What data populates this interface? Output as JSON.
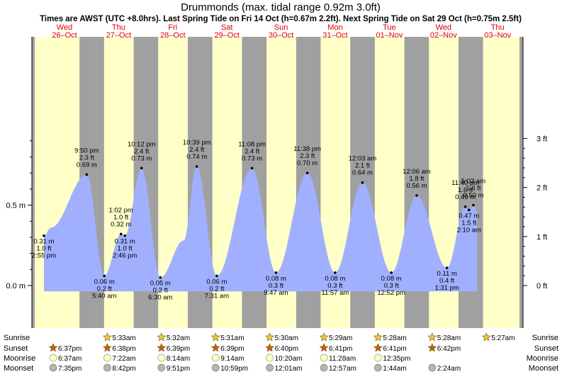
{
  "chart_data": {
    "type": "area",
    "title": "Drummonds (max. tidal range 0.92m 3.0ft)",
    "subtitle": "Times are AWST (UTC +8.0hrs). Last Spring Tide on Fri 14 Oct (h=0.67m 2.2ft). Next Spring Tide on Sat 29 Oct (h=0.75m 2.5ft)",
    "ylim_m": [
      -0.16,
      1.0
    ],
    "xlim_day": [
      -0.7,
      8.0
    ],
    "y_ticks_m": [
      {
        "v": 0.0,
        "label": "0.0 m"
      },
      {
        "v": 0.5,
        "label": "0.5 m"
      }
    ],
    "y_ticks_ft": [
      {
        "v": 0,
        "label": "0 ft"
      },
      {
        "v": 1,
        "label": "1 ft"
      },
      {
        "v": 2,
        "label": "2 ft"
      },
      {
        "v": 3,
        "label": "3 ft"
      }
    ],
    "days": [
      {
        "dow": "Wed",
        "date": "26–Oct",
        "pos": 0.0
      },
      {
        "dow": "Thu",
        "date": "27–Oct",
        "pos": 1.0
      },
      {
        "dow": "Fri",
        "date": "28–Oct",
        "pos": 2.0
      },
      {
        "dow": "Sat",
        "date": "29–Oct",
        "pos": 3.0
      },
      {
        "dow": "Sun",
        "date": "30–Oct",
        "pos": 4.0
      },
      {
        "dow": "Mon",
        "date": "31–Oct",
        "pos": 5.0
      },
      {
        "dow": "Tue",
        "date": "01–Nov",
        "pos": 6.0
      },
      {
        "dow": "Wed",
        "date": "02–Nov",
        "pos": 7.0
      },
      {
        "dow": "Thu",
        "date": "03–Nov",
        "pos": 8.0
      }
    ],
    "night_intervals": [
      [
        0.278,
        0.731
      ],
      [
        1.278,
        1.731
      ],
      [
        2.278,
        2.731
      ],
      [
        3.278,
        3.731
      ],
      [
        4.278,
        4.731
      ],
      [
        5.278,
        5.731
      ],
      [
        6.278,
        6.731
      ],
      [
        7.278,
        7.73
      ]
    ],
    "tides": [
      {
        "t": -0.25,
        "h": 0.36,
        "label": false
      },
      {
        "t": -0.38,
        "h": 0.31,
        "m": "0.31 m",
        "ft": "1.0 ft",
        "time": "2:55 pm",
        "kind": "low",
        "label": true
      },
      {
        "t": 0.41,
        "h": 0.69,
        "m": "0.69 m",
        "ft": "2.3 ft",
        "time": "9:50 pm",
        "kind": "high",
        "label": true
      },
      {
        "t": 0.736,
        "h": 0.06,
        "m": "0.06 m",
        "ft": "0.2 ft",
        "time": "5:40 am",
        "kind": "low",
        "label": true
      },
      {
        "t": 1.043,
        "h": 0.32,
        "m": "0.32 m",
        "ft": "1.0 ft",
        "time": "1:02 pm",
        "kind": "high",
        "label": true
      },
      {
        "t": 1.115,
        "h": 0.31,
        "m": "0.31 m",
        "ft": "1.0 ft",
        "time": "2:46 pm",
        "kind": "low",
        "label": true
      },
      {
        "t": 1.424,
        "h": 0.73,
        "m": "0.73 m",
        "ft": "2.4 ft",
        "time": "10:12 pm",
        "kind": "high",
        "label": true
      },
      {
        "t": 1.771,
        "h": 0.05,
        "m": "0.05 m",
        "ft": "0.2 ft",
        "time": "6:30 am",
        "kind": "low",
        "label": true
      },
      {
        "t": 2.2,
        "h": 0.28,
        "label": false
      },
      {
        "t": 2.444,
        "h": 0.74,
        "m": "0.74 m",
        "ft": "2.4 ft",
        "time": "10:39 pm",
        "kind": "high",
        "label": true
      },
      {
        "t": 2.813,
        "h": 0.06,
        "m": "0.06 m",
        "ft": "0.2 ft",
        "time": "7:31 am",
        "kind": "low",
        "label": true
      },
      {
        "t": 3.464,
        "h": 0.73,
        "m": "0.73 m",
        "ft": "2.4 ft",
        "time": "11:08 pm",
        "kind": "high",
        "label": true
      },
      {
        "t": 3.906,
        "h": 0.08,
        "m": "0.08 m",
        "ft": "0.3 ft",
        "time": "9:47 am",
        "kind": "low",
        "label": true
      },
      {
        "t": 4.485,
        "h": 0.7,
        "m": "0.70 m",
        "ft": "2.3 ft",
        "time": "11:38 pm",
        "kind": "high",
        "label": true
      },
      {
        "t": 4.998,
        "h": 0.08,
        "m": "0.08 m",
        "ft": "0.3 ft",
        "time": "11:57 am",
        "kind": "low",
        "label": true
      },
      {
        "t": 5.503,
        "h": 0.64,
        "m": "0.64 m",
        "ft": "2.1 ft",
        "time": "12:03 am",
        "kind": "high",
        "label": true
      },
      {
        "t": 6.036,
        "h": 0.08,
        "m": "0.08 m",
        "ft": "0.3 ft",
        "time": "12:52 pm",
        "kind": "low",
        "label": true
      },
      {
        "t": 6.505,
        "h": 0.56,
        "m": "0.56 m",
        "ft": "1.8 ft",
        "time": "12:06 am",
        "kind": "high",
        "label": true
      },
      {
        "t": 7.063,
        "h": 0.11,
        "m": "0.11 m",
        "ft": "0.4 ft",
        "time": "1:31 pm",
        "kind": "low",
        "label": true
      },
      {
        "t": 7.403,
        "h": 0.49,
        "m": "0.49 m",
        "ft": "1.6 ft",
        "time": "11:40 pm",
        "kind": "high",
        "label": true
      },
      {
        "t": 7.471,
        "h": 0.47,
        "m": "0.47 m",
        "ft": "1.5 ft",
        "time": "2:10 am",
        "kind": "low",
        "label": true
      },
      {
        "t": 7.552,
        "h": 0.5,
        "m": "0.50 m",
        "ft": "1.6 ft",
        "time": "5:03 am",
        "kind": "high",
        "label": true
      },
      {
        "t": 7.62,
        "h": 0.46,
        "label": false
      }
    ]
  },
  "footer": {
    "rows": [
      {
        "name": "Sunrise",
        "icon": "sun-icon"
      },
      {
        "name": "Sunset",
        "icon": "sunset-icon"
      },
      {
        "name": "Moonrise",
        "icon": "moonrise-icon"
      },
      {
        "name": "Moonset",
        "icon": "moonset-icon"
      }
    ],
    "sunrise": [
      {
        "day": 1,
        "time": "5:33am"
      },
      {
        "day": 2,
        "time": "5:32am"
      },
      {
        "day": 3,
        "time": "5:31am"
      },
      {
        "day": 4,
        "time": "5:30am"
      },
      {
        "day": 5,
        "time": "5:29am"
      },
      {
        "day": 6,
        "time": "5:28am"
      },
      {
        "day": 7,
        "time": "5:28am"
      },
      {
        "day": 8,
        "time": "5:27am"
      }
    ],
    "sunset": [
      {
        "day": 0,
        "time": "6:37pm"
      },
      {
        "day": 1,
        "time": "6:38pm"
      },
      {
        "day": 2,
        "time": "6:39pm"
      },
      {
        "day": 3,
        "time": "6:39pm"
      },
      {
        "day": 4,
        "time": "6:40pm"
      },
      {
        "day": 5,
        "time": "6:41pm"
      },
      {
        "day": 6,
        "time": "6:41pm"
      },
      {
        "day": 7,
        "time": "6:42pm"
      }
    ],
    "moonrise": [
      {
        "day": 0,
        "time": "6:37am"
      },
      {
        "day": 1,
        "time": "7:22am"
      },
      {
        "day": 2,
        "time": "8:14am"
      },
      {
        "day": 3,
        "time": "9:14am"
      },
      {
        "day": 4,
        "time": "10:20am"
      },
      {
        "day": 5,
        "time": "11:28am"
      },
      {
        "day": 6,
        "time": "12:35pm"
      }
    ],
    "moonset": [
      {
        "day": 0,
        "time": "7:35pm"
      },
      {
        "day": 1,
        "time": "8:42pm"
      },
      {
        "day": 2,
        "time": "9:51pm"
      },
      {
        "day": 3,
        "time": "10:59pm"
      },
      {
        "day": 4,
        "time": "12:01am"
      },
      {
        "day": 5,
        "time": "12:57am"
      },
      {
        "day": 6,
        "time": "1:44am"
      },
      {
        "day": 7,
        "time": "2:24am"
      }
    ]
  },
  "colors": {
    "day": "#ffffc8",
    "night": "#a0a0a0",
    "sea": "#a0b0ff",
    "date_text": "#dd0000",
    "sun": "#e8c840",
    "sunset": "#c06018",
    "moonrise": "#ffffc0",
    "moonset": "#b8b8a8"
  }
}
